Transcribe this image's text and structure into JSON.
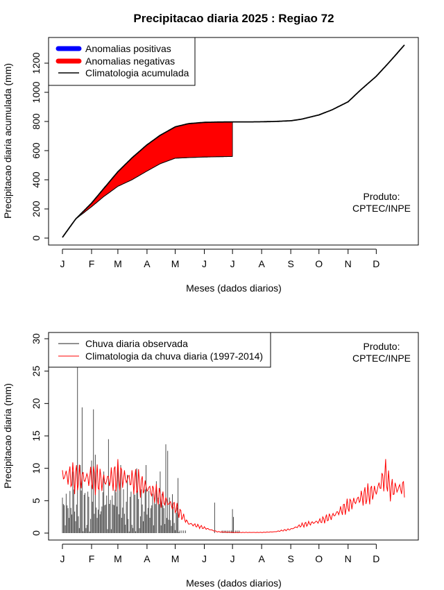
{
  "title": "Precipitacao diaria 2025 : Regiao 72",
  "month_labels": [
    "J",
    "F",
    "M",
    "A",
    "M",
    "J",
    "J",
    "A",
    "S",
    "O",
    "N",
    "D"
  ],
  "colors": {
    "positive": "#0000ff",
    "negative": "#ff0000",
    "observed": "#4d4d4d",
    "climatology_daily": "#ff0000",
    "cumulative": "#000000"
  },
  "chart_data": [
    {
      "type": "area",
      "ylabel": "Precipitacao diaria acumulada (mm)",
      "xlabel": "Meses (dados diarios)",
      "ylim": [
        0,
        1300
      ],
      "yticks": [
        0,
        200,
        400,
        600,
        800,
        1000,
        1200
      ],
      "legend": {
        "placement": "top-left",
        "items": [
          "Anomalias positivas",
          "Anomalias negativas",
          "Climatologia acumulada"
        ]
      },
      "annotation": [
        "Produto:",
        "CPTEC/INPE"
      ],
      "series": [
        {
          "name": "Climatologia acumulada",
          "x": [
            1,
            15,
            32,
            45,
            60,
            75,
            91,
            105,
            121,
            135,
            152,
            166,
            182,
            200,
            213,
            227,
            244,
            255,
            274,
            288,
            305,
            319,
            335,
            350,
            365
          ],
          "y": [
            5,
            130,
            240,
            340,
            455,
            550,
            640,
            705,
            763,
            785,
            794,
            796,
            797,
            797,
            798,
            800,
            805,
            815,
            845,
            880,
            935,
            1020,
            1110,
            1215,
            1325
          ]
        },
        {
          "name": "Chuva acumulada observada",
          "x": [
            1,
            15,
            32,
            45,
            60,
            75,
            91,
            105,
            121,
            135,
            152,
            166,
            182
          ],
          "y": [
            5,
            130,
            215,
            285,
            355,
            400,
            460,
            510,
            548,
            552,
            556,
            558,
            560
          ]
        }
      ]
    },
    {
      "type": "bar",
      "ylabel": "Precipitacao diaria (mm)",
      "xlabel": "Meses (dados diarios)",
      "ylim": [
        0,
        30
      ],
      "yticks": [
        0,
        5,
        10,
        15,
        20,
        25,
        30
      ],
      "legend": {
        "placement": "top-left",
        "items": [
          "Chuva diaria observada",
          "Climatologia da chuva diaria (1997-2014)"
        ]
      },
      "annotation": [
        "Produto:",
        "CPTEC/INPE"
      ],
      "observed_peaks": {
        "x": [
          3,
          12,
          17,
          20,
          22,
          32,
          34,
          36,
          45,
          50,
          57,
          60,
          63,
          70,
          80,
          90,
          101,
          105,
          111,
          113,
          115,
          118,
          124,
          163,
          182,
          183
        ],
        "y": [
          4.3,
          9.5,
          25.8,
          10.5,
          19.4,
          11.2,
          19.1,
          12.1,
          9.5,
          14.5,
          6.7,
          11.0,
          10.5,
          9.0,
          10.0,
          10.5,
          8.0,
          9.5,
          13.7,
          12.7,
          5.5,
          6.0,
          8.5,
          4.7,
          3.7,
          2.5
        ]
      },
      "climatology_daily": {
        "x": [
          1,
          15,
          32,
          45,
          60,
          75,
          91,
          105,
          121,
          135,
          152,
          166,
          182,
          200,
          213,
          227,
          244,
          255,
          274,
          288,
          305,
          319,
          335,
          345,
          350,
          365
        ],
        "y": [
          9.0,
          8.5,
          8.5,
          8.0,
          8.8,
          8.2,
          7.0,
          5.5,
          4.0,
          1.5,
          0.8,
          0.2,
          0.1,
          0.1,
          0.1,
          0.2,
          0.6,
          1.2,
          1.8,
          2.6,
          4.2,
          5.5,
          6.5,
          9.0,
          6.8,
          7.0
        ]
      }
    }
  ]
}
